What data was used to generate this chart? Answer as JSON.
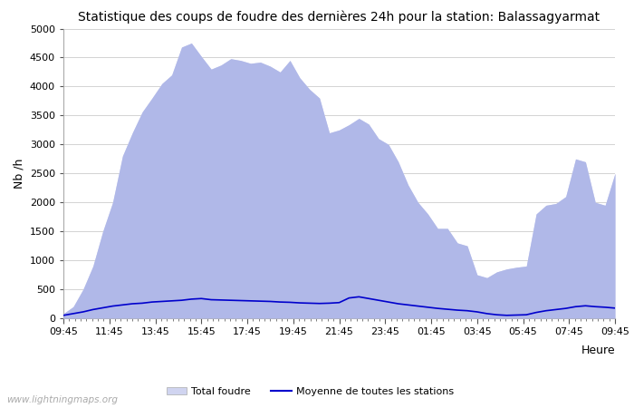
{
  "title": "Statistique des coups de foudre des dernières 24h pour la station: Balassagyarmat",
  "xlabel": "Heure",
  "ylabel": "Nb /h",
  "xlim": [
    0,
    48
  ],
  "ylim": [
    0,
    5000
  ],
  "yticks": [
    0,
    500,
    1000,
    1500,
    2000,
    2500,
    3000,
    3500,
    4000,
    4500,
    5000
  ],
  "xtick_labels": [
    "09:45",
    "11:45",
    "13:45",
    "15:45",
    "17:45",
    "19:45",
    "21:45",
    "23:45",
    "01:45",
    "03:45",
    "05:45",
    "07:45",
    "09:45"
  ],
  "background_color": "#ffffff",
  "plot_bg_color": "#ffffff",
  "grid_color": "#cccccc",
  "watermark": "www.lightningmaps.org",
  "total_foudre_color": "#d0d4f0",
  "local_foudre_color": "#b0b8e8",
  "moyenne_color": "#0000cc",
  "total_foudre_data": [
    80,
    200,
    500,
    900,
    1500,
    2000,
    2800,
    3200,
    3560,
    3800,
    4050,
    4200,
    4680,
    4750,
    4520,
    4300,
    4370,
    4480,
    4450,
    4400,
    4420,
    4350,
    4250,
    4450,
    4150,
    3950,
    3800,
    3200,
    3250,
    3340,
    3450,
    3350,
    3100,
    3000,
    2700,
    2300,
    2000,
    1800,
    1550,
    1550,
    1300,
    1250,
    750,
    700,
    800,
    850,
    880,
    900,
    1800,
    1950,
    1980,
    2100,
    2750,
    2700,
    2000,
    1950,
    2500
  ],
  "local_foudre_data": [
    80,
    200,
    500,
    900,
    1500,
    2000,
    2800,
    3200,
    3560,
    3800,
    4050,
    4200,
    4680,
    4750,
    4520,
    4300,
    4370,
    4480,
    4450,
    4400,
    4420,
    4350,
    4250,
    4450,
    4150,
    3950,
    3800,
    3200,
    3250,
    3340,
    3450,
    3350,
    3100,
    3000,
    2700,
    2300,
    2000,
    1800,
    1550,
    1550,
    1300,
    1250,
    750,
    700,
    800,
    850,
    880,
    900,
    1800,
    1950,
    1980,
    2100,
    2750,
    2700,
    2000,
    1950,
    2500
  ],
  "moyenne_data": [
    50,
    80,
    110,
    150,
    180,
    210,
    230,
    250,
    260,
    280,
    290,
    300,
    310,
    330,
    340,
    320,
    315,
    310,
    305,
    300,
    295,
    290,
    280,
    275,
    265,
    260,
    255,
    260,
    270,
    350,
    370,
    340,
    310,
    280,
    250,
    230,
    210,
    190,
    170,
    155,
    140,
    130,
    110,
    80,
    60,
    50,
    55,
    60,
    100,
    130,
    150,
    170,
    200,
    215,
    200,
    190,
    175
  ]
}
